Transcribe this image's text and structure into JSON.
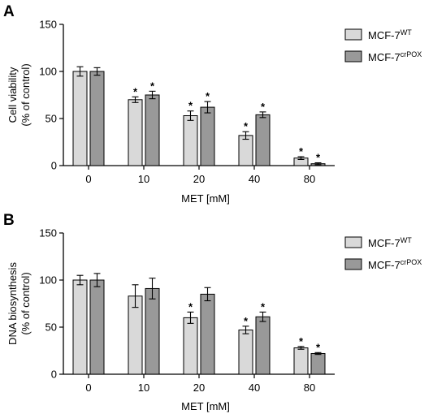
{
  "colors": {
    "wt": "#d9d9d9",
    "crpox": "#999999",
    "axis": "#000000"
  },
  "chart_data": [
    {
      "type": "bar",
      "panel_label": "A",
      "ylabel_line1": "Cell viability",
      "ylabel_line2": "(% of control)",
      "xlabel": "MET [mM]",
      "categories": [
        "0",
        "10",
        "20",
        "40",
        "80"
      ],
      "ylim": [
        0,
        150
      ],
      "yticks": [
        "0",
        "50",
        "100",
        "150"
      ],
      "legend_position": "top-right",
      "significance_mark": "*",
      "series": [
        {
          "name_base": "MCF-7",
          "name_sup": "WT",
          "key": "wt",
          "values": [
            100,
            70,
            53,
            32,
            8
          ],
          "errors": [
            5,
            3,
            5,
            4,
            1.5
          ],
          "significant": [
            false,
            true,
            true,
            true,
            true
          ]
        },
        {
          "name_base": "MCF-7",
          "name_sup": "crPOX",
          "key": "crpox",
          "values": [
            100,
            75,
            62,
            54,
            2
          ],
          "errors": [
            4,
            4,
            6,
            3,
            1
          ],
          "significant": [
            false,
            true,
            true,
            true,
            true
          ]
        }
      ]
    },
    {
      "type": "bar",
      "panel_label": "B",
      "ylabel_line1": "DNA biosynthesis",
      "ylabel_line2": "(% of control)",
      "xlabel": "MET [mM]",
      "categories": [
        "0",
        "10",
        "20",
        "40",
        "80"
      ],
      "ylim": [
        0,
        150
      ],
      "yticks": [
        "0",
        "50",
        "100",
        "150"
      ],
      "legend_position": "top-right",
      "significance_mark": "*",
      "series": [
        {
          "name_base": "MCF-7",
          "name_sup": "WT",
          "key": "wt",
          "values": [
            100,
            83,
            60,
            47,
            28
          ],
          "errors": [
            5,
            12,
            6,
            4,
            1.5
          ],
          "significant": [
            false,
            false,
            true,
            true,
            true
          ]
        },
        {
          "name_base": "MCF-7",
          "name_sup": "crPOX",
          "key": "crpox",
          "values": [
            100,
            91,
            85,
            61,
            22
          ],
          "errors": [
            7,
            11,
            7,
            5,
            1
          ],
          "significant": [
            false,
            false,
            false,
            true,
            true
          ]
        }
      ]
    }
  ]
}
